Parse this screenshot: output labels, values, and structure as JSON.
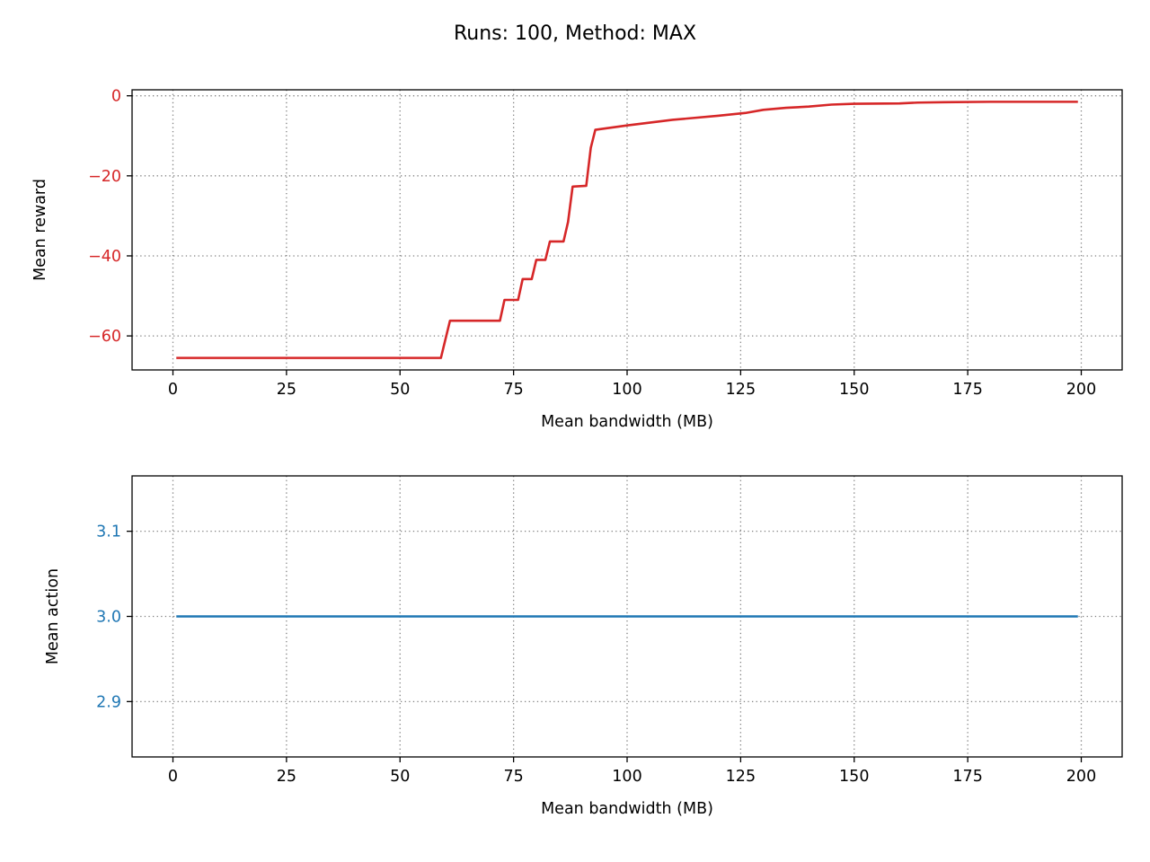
{
  "figure": {
    "title": "Runs: 100, Method: MAX"
  },
  "chart_data": [
    {
      "type": "line",
      "title": "",
      "xlabel": "Mean bandwidth (MB)",
      "ylabel": "Mean reward",
      "xlim": [
        -9,
        209
      ],
      "ylim": [
        -68.5,
        1.5
      ],
      "xticks": [
        0,
        25,
        50,
        75,
        100,
        125,
        150,
        175,
        200
      ],
      "yticks": [
        0,
        -20,
        -40,
        -60
      ],
      "ytick_labels": [
        "0",
        "−20",
        "−40",
        "−60"
      ],
      "xtick_labels": [
        "0",
        "25",
        "50",
        "75",
        "100",
        "125",
        "150",
        "175",
        "200"
      ],
      "grid": true,
      "ytick_color": "#d62728",
      "series": [
        {
          "color": "#d62728",
          "x": [
            1,
            59,
            61,
            72,
            73,
            76,
            77,
            79,
            80,
            82,
            83,
            86,
            87,
            88,
            91,
            92,
            93,
            100,
            110,
            120,
            126,
            130,
            135,
            140,
            145,
            150,
            160,
            164,
            170,
            180,
            190,
            199
          ],
          "y": [
            -65.5,
            -65.5,
            -56.2,
            -56.2,
            -51,
            -51,
            -45.8,
            -45.8,
            -41,
            -41,
            -36.4,
            -36.4,
            -31.5,
            -22.7,
            -22.5,
            -13,
            -8.5,
            -7.4,
            -6,
            -5,
            -4.3,
            -3.5,
            -3,
            -2.7,
            -2.2,
            -2,
            -1.9,
            -1.7,
            -1.6,
            -1.5,
            -1.5,
            -1.5
          ]
        }
      ]
    },
    {
      "type": "line",
      "title": "",
      "xlabel": "Mean bandwidth (MB)",
      "ylabel": "Mean action",
      "xlim": [
        -9,
        209
      ],
      "ylim": [
        2.835,
        3.165
      ],
      "xticks": [
        0,
        25,
        50,
        75,
        100,
        125,
        150,
        175,
        200
      ],
      "yticks": [
        2.9,
        3.0,
        3.1
      ],
      "ytick_labels": [
        "2.9",
        "3.0",
        "3.1"
      ],
      "xtick_labels": [
        "0",
        "25",
        "50",
        "75",
        "100",
        "125",
        "150",
        "175",
        "200"
      ],
      "grid": true,
      "ytick_color": "#1f77b4",
      "series": [
        {
          "color": "#1f77b4",
          "x": [
            1,
            199
          ],
          "y": [
            3.0,
            3.0
          ]
        }
      ]
    }
  ]
}
